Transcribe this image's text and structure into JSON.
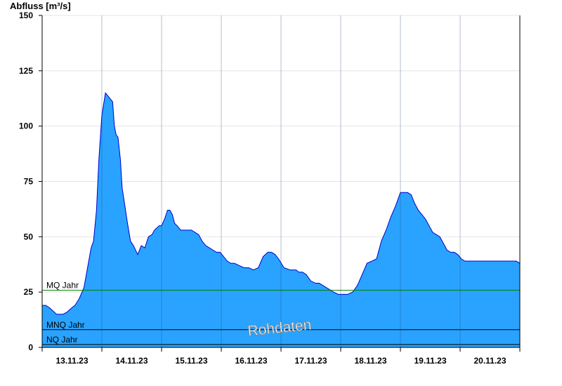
{
  "chart_data": {
    "type": "area",
    "ylabel": "Abfluss [m³/s]",
    "ylim": [
      0,
      150
    ],
    "yticks": [
      0,
      25,
      50,
      75,
      100,
      125,
      150
    ],
    "xlim": [
      0,
      8
    ],
    "x_tick_labels": [
      "13.11.23",
      "14.11.23",
      "15.11.23",
      "16.11.23",
      "17.11.23",
      "18.11.23",
      "19.11.23",
      "20.11.23"
    ],
    "grid": true,
    "fill_color": "#29a3ff",
    "line_color": "#0000cc",
    "watermark": "Rohdaten",
    "reference_lines": [
      {
        "label": "MQ Jahr",
        "value": 25.8,
        "color": "#008000"
      },
      {
        "label": "MNQ Jahr",
        "value": 8.0,
        "color": "#000000"
      },
      {
        "label": "NQ Jahr",
        "value": 1.3,
        "color": "#000000"
      }
    ],
    "series": [
      {
        "x": [
          0.0,
          0.06,
          0.12,
          0.2,
          0.24,
          0.28,
          0.35,
          0.42,
          0.5,
          0.55,
          0.62,
          0.7,
          0.76,
          0.82,
          0.86,
          0.91,
          0.95,
          1.0,
          1.06,
          1.12,
          1.18,
          1.21,
          1.24,
          1.27,
          1.29,
          1.31,
          1.34,
          1.38,
          1.43,
          1.48,
          1.53,
          1.6,
          1.66,
          1.72,
          1.78,
          1.84,
          1.88,
          1.92,
          1.96,
          2.0,
          2.05,
          2.1,
          2.14,
          2.18,
          2.22,
          2.26,
          2.32,
          2.38,
          2.44,
          2.5,
          2.56,
          2.62,
          2.68,
          2.74,
          2.8,
          2.86,
          2.92,
          2.98,
          3.04,
          3.1,
          3.16,
          3.22,
          3.3,
          3.38,
          3.46,
          3.54,
          3.62,
          3.7,
          3.78,
          3.84,
          3.9,
          3.96,
          4.05,
          4.15,
          4.25,
          4.3,
          4.36,
          4.42,
          4.5,
          4.58,
          4.64,
          4.7,
          4.76,
          4.82,
          4.88,
          4.96,
          5.04,
          5.12,
          5.2,
          5.28,
          5.36,
          5.44,
          5.52,
          5.6,
          5.68,
          5.76,
          5.84,
          5.92,
          6.0,
          6.06,
          6.12,
          6.18,
          6.24,
          6.3,
          6.36,
          6.42,
          6.48,
          6.54,
          6.6,
          6.66,
          6.72,
          6.78,
          6.84,
          6.9,
          6.96,
          7.02,
          7.08,
          7.14,
          7.2,
          7.26,
          7.32,
          7.38,
          7.46,
          7.54,
          7.62,
          7.7,
          7.76,
          7.82,
          7.88,
          7.94,
          8.0
        ],
        "values": [
          19,
          19,
          18,
          16,
          15,
          15,
          15,
          16,
          18,
          19,
          22,
          27,
          36,
          45,
          48,
          62,
          85,
          105,
          115,
          113,
          111,
          100,
          96,
          95,
          90,
          85,
          72,
          65,
          56,
          48,
          46,
          42,
          46,
          45,
          50,
          51,
          53,
          54,
          55,
          55,
          58,
          62,
          62,
          60,
          56,
          55,
          53,
          53,
          53,
          53,
          52,
          51,
          48,
          46,
          45,
          44,
          43,
          43,
          41,
          39,
          38,
          38,
          37,
          36,
          36,
          35,
          36,
          41,
          43,
          43,
          42,
          40,
          36,
          35,
          35,
          34,
          34,
          33,
          30,
          29,
          29,
          28,
          27,
          26,
          25,
          24,
          24,
          24,
          25,
          28,
          33,
          38,
          39,
          40,
          48,
          53,
          59,
          64,
          70,
          70,
          70,
          69,
          65,
          62,
          60,
          58,
          55,
          52,
          51,
          50,
          47,
          44,
          43,
          43,
          42,
          40,
          39,
          39,
          39,
          39,
          39,
          39,
          39,
          39,
          39,
          39,
          39,
          39,
          39,
          39,
          38
        ]
      }
    ]
  }
}
